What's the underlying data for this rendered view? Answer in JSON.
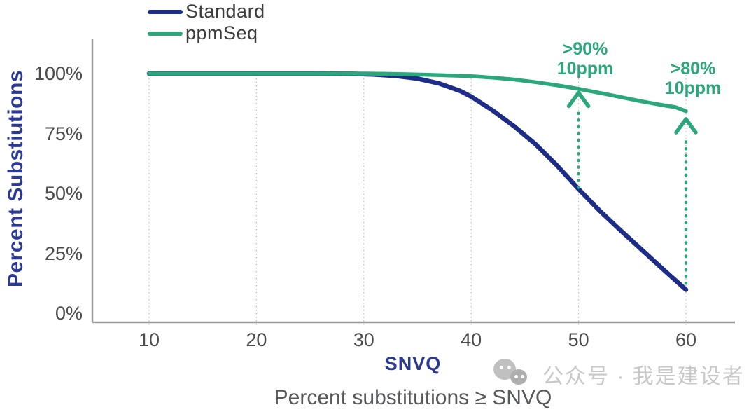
{
  "caption": "Percent substitutions ≥ SNVQ",
  "watermark": {
    "icon": "wechat-icon",
    "text": "公众号 · 我是建设者"
  },
  "colors": {
    "standard_line": "#1d2d87",
    "ppmseq_line": "#2ba77c",
    "axis_title_blue": "#2b3994",
    "axis_line": "#9a9a9a",
    "gridline": "#c0c0c0",
    "tick_text": "#4c4c4c",
    "caption_text": "#57585b",
    "annotation_green": "#2ba77c"
  },
  "chart_data": {
    "type": "line",
    "title": "",
    "xlabel": "SNVQ",
    "ylabel": "Percent Substiutions",
    "xlim": [
      10,
      60
    ],
    "ylim": [
      0,
      100
    ],
    "xticks": [
      10,
      20,
      30,
      40,
      50,
      60
    ],
    "yticks": [
      {
        "value": 100,
        "label": "100%"
      },
      {
        "value": 75,
        "label": "75%"
      },
      {
        "value": 50,
        "label": "50%"
      },
      {
        "value": 25,
        "label": "25%"
      },
      {
        "value": 0,
        "label": "0%"
      }
    ],
    "grid": "vertical-dotted",
    "legend_position": "top-left",
    "series": [
      {
        "name": "Standard",
        "color": "#1d2d87",
        "points": [
          [
            10,
            100
          ],
          [
            14,
            100
          ],
          [
            18,
            100
          ],
          [
            22,
            100
          ],
          [
            26,
            100
          ],
          [
            29,
            99.9
          ],
          [
            31,
            99.6
          ],
          [
            33,
            99.0
          ],
          [
            35,
            97.9
          ],
          [
            37,
            95.9
          ],
          [
            39,
            92.7
          ],
          [
            40,
            90.4
          ],
          [
            42,
            84.6
          ],
          [
            44,
            78.0
          ],
          [
            46,
            70.5
          ],
          [
            48,
            61.6
          ],
          [
            50,
            51.8
          ],
          [
            52,
            42.6
          ],
          [
            54,
            34.2
          ],
          [
            56,
            26.0
          ],
          [
            58,
            17.8
          ],
          [
            60,
            9.8
          ]
        ]
      },
      {
        "name": "ppmSeq",
        "color": "#2ba77c",
        "points": [
          [
            10,
            100
          ],
          [
            15,
            100
          ],
          [
            20,
            100
          ],
          [
            25,
            100
          ],
          [
            30,
            100
          ],
          [
            32,
            99.9
          ],
          [
            34,
            99.7
          ],
          [
            36,
            99.5
          ],
          [
            38,
            99.2
          ],
          [
            40,
            98.9
          ],
          [
            42,
            98.3
          ],
          [
            44,
            97.5
          ],
          [
            46,
            96.4
          ],
          [
            48,
            95.1
          ],
          [
            50,
            93.6
          ],
          [
            52,
            91.9
          ],
          [
            54,
            90.1
          ],
          [
            56,
            88.3
          ],
          [
            58,
            86.7
          ],
          [
            59,
            86.0
          ],
          [
            60,
            84.3
          ]
        ]
      }
    ],
    "annotations": [
      {
        "lines": [
          ">90%",
          "10ppm"
        ],
        "x": 50,
        "arrow_from_pct": 52.5,
        "arrow_tip_pct": 92
      },
      {
        "lines": [
          ">80%",
          "10ppm"
        ],
        "x": 60,
        "arrow_from_pct": 12.5,
        "arrow_tip_pct": 81
      }
    ]
  }
}
